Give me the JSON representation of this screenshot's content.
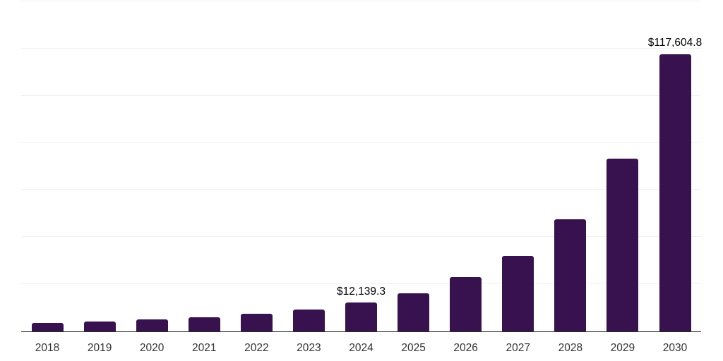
{
  "chart_data": {
    "type": "bar",
    "title": "",
    "xlabel": "",
    "ylabel": "",
    "categories": [
      "2018",
      "2019",
      "2020",
      "2021",
      "2022",
      "2023",
      "2024",
      "2025",
      "2026",
      "2027",
      "2028",
      "2029",
      "2030"
    ],
    "values": [
      3700,
      4100,
      5100,
      6000,
      7500,
      9200,
      12139.3,
      16250,
      23000,
      32100,
      47600,
      73400,
      117604.8
    ],
    "data_labels": {
      "2024": "$12,139.3",
      "2030": "$117,604.8"
    },
    "ylim": [
      0,
      140000
    ],
    "gridline_values": [
      20000,
      40000,
      60000,
      80000,
      100000,
      120000,
      140000
    ],
    "grid": true,
    "legend": false,
    "bar_color": "#38124E",
    "axis_line_color": "#2b2b2b",
    "gridline_color": "#f1f1f1",
    "x_tick_color": "#333333",
    "data_label_color": "#000000"
  }
}
